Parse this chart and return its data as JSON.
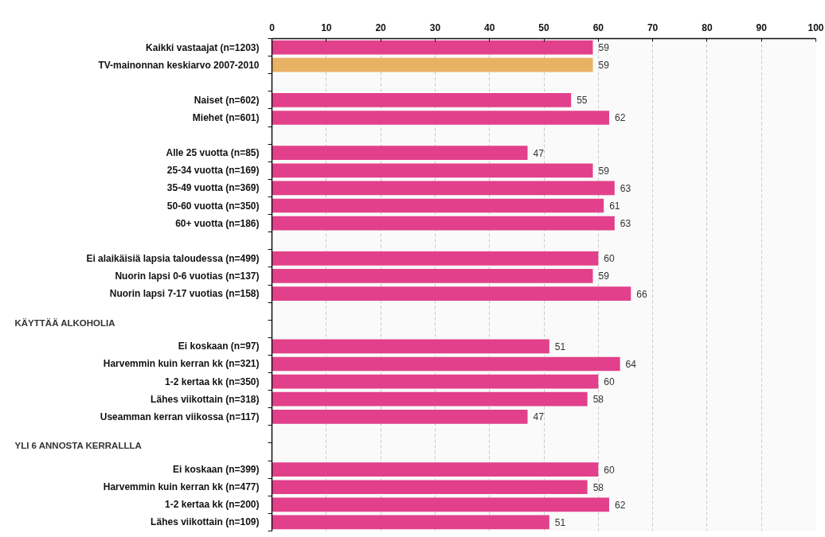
{
  "chart_data": {
    "type": "bar",
    "orientation": "horizontal",
    "categories": [
      "Kaikki vastaajat (n=1203)",
      "TV-mainonnan keskiarvo 2007-2010",
      null,
      "Naiset (n=602)",
      "Miehet (n=601)",
      null,
      "Alle 25 vuotta (n=85)",
      "25-34 vuotta (n=169)",
      "35-49 vuotta (n=369)",
      "50-60 vuotta (n=350)",
      "60+ vuotta (n=186)",
      null,
      "Ei alaikäisiä lapsia taloudessa (n=499)",
      "Nuorin lapsi 0-6 vuotias (n=137)",
      "Nuorin lapsi 7-17 vuotias (n=158)",
      null,
      null,
      "Ei koskaan (n=97)",
      "Harvemmin kuin kerran kk (n=321)",
      "1-2 kertaa kk (n=350)",
      "Lähes viikottain (n=318)",
      "Useamman kerran viikossa (n=117)",
      null,
      null,
      "Ei koskaan (n=399)",
      "Harvemmin kuin kerran kk (n=477)",
      "1-2 kertaa kk (n=200)",
      "Lähes viikottain (n=109)"
    ],
    "values": [
      59,
      59,
      null,
      55,
      62,
      null,
      47,
      59,
      63,
      61,
      63,
      null,
      60,
      59,
      66,
      null,
      null,
      51,
      64,
      60,
      58,
      47,
      null,
      null,
      60,
      58,
      62,
      51
    ],
    "colors": [
      "#e2408a",
      "#e8b264",
      null,
      "#e2408a",
      "#e2408a",
      null,
      "#e2408a",
      "#e2408a",
      "#e2408a",
      "#e2408a",
      "#e2408a",
      null,
      "#e2408a",
      "#e2408a",
      "#e2408a",
      null,
      null,
      "#e2408a",
      "#e2408a",
      "#e2408a",
      "#e2408a",
      "#e2408a",
      null,
      null,
      "#e2408a",
      "#e2408a",
      "#e2408a",
      "#e2408a"
    ],
    "annotations": [
      "KÄYTTÄÄ ALKOHOLIA",
      "YLI 6 ANNOSTA KERRALLLA"
    ],
    "xlim": [
      0,
      100
    ],
    "xticks": [
      0,
      10,
      20,
      30,
      40,
      50,
      60,
      70,
      80,
      90,
      100
    ],
    "grid": "x",
    "data_labels": true
  }
}
